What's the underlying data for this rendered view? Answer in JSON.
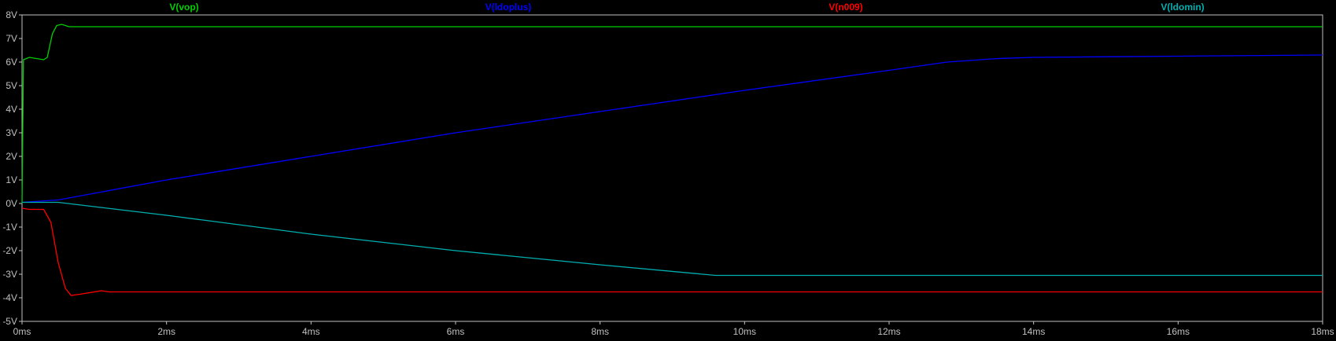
{
  "chart_data": {
    "type": "line",
    "xlabel": "",
    "ylabel": "",
    "xlim": [
      0,
      18
    ],
    "ylim": [
      -5,
      8
    ],
    "x_unit": "ms",
    "x_ticks": [
      "0ms",
      "2ms",
      "4ms",
      "6ms",
      "8ms",
      "10ms",
      "12ms",
      "14ms",
      "16ms",
      "18ms"
    ],
    "y_ticks": [
      "8V",
      "7V",
      "6V",
      "5V",
      "4V",
      "3V",
      "2V",
      "1V",
      "0V",
      "-1V",
      "-2V",
      "-3V",
      "-4V",
      "-5V"
    ],
    "grid": false,
    "legend": "top",
    "series": [
      {
        "name": "V(vop)",
        "color": "#00d000",
        "points": [
          [
            0,
            0
          ],
          [
            0.02,
            6.1
          ],
          [
            0.1,
            6.2
          ],
          [
            0.3,
            6.1
          ],
          [
            0.35,
            6.2
          ],
          [
            0.42,
            7.2
          ],
          [
            0.48,
            7.55
          ],
          [
            0.55,
            7.6
          ],
          [
            0.65,
            7.5
          ],
          [
            2,
            7.5
          ],
          [
            6,
            7.5
          ],
          [
            10,
            7.5
          ],
          [
            14,
            7.5
          ],
          [
            18,
            7.5
          ]
        ]
      },
      {
        "name": "V(ldoplus)",
        "color": "#0000ff",
        "points": [
          [
            0,
            0.05
          ],
          [
            0.5,
            0.15
          ],
          [
            2,
            1.0
          ],
          [
            4,
            2.0
          ],
          [
            6,
            3.0
          ],
          [
            8,
            3.9
          ],
          [
            10,
            4.8
          ],
          [
            12,
            5.65
          ],
          [
            12.8,
            6.0
          ],
          [
            13.5,
            6.15
          ],
          [
            14,
            6.2
          ],
          [
            16,
            6.25
          ],
          [
            18,
            6.3
          ]
        ]
      },
      {
        "name": "V(n009)",
        "color": "#ff0000",
        "points": [
          [
            0,
            -0.2
          ],
          [
            0.1,
            -0.25
          ],
          [
            0.3,
            -0.25
          ],
          [
            0.4,
            -0.8
          ],
          [
            0.5,
            -2.5
          ],
          [
            0.6,
            -3.6
          ],
          [
            0.68,
            -3.9
          ],
          [
            0.8,
            -3.85
          ],
          [
            1.1,
            -3.7
          ],
          [
            1.2,
            -3.75
          ],
          [
            4,
            -3.75
          ],
          [
            8,
            -3.75
          ],
          [
            12,
            -3.75
          ],
          [
            18,
            -3.75
          ]
        ]
      },
      {
        "name": "V(ldomin)",
        "color": "#00b0b0",
        "points": [
          [
            0,
            0.05
          ],
          [
            0.5,
            0.05
          ],
          [
            2,
            -0.5
          ],
          [
            4,
            -1.3
          ],
          [
            6,
            -2.0
          ],
          [
            8,
            -2.6
          ],
          [
            9.6,
            -3.05
          ],
          [
            10,
            -3.05
          ],
          [
            14,
            -3.05
          ],
          [
            18,
            -3.05
          ]
        ]
      }
    ]
  }
}
